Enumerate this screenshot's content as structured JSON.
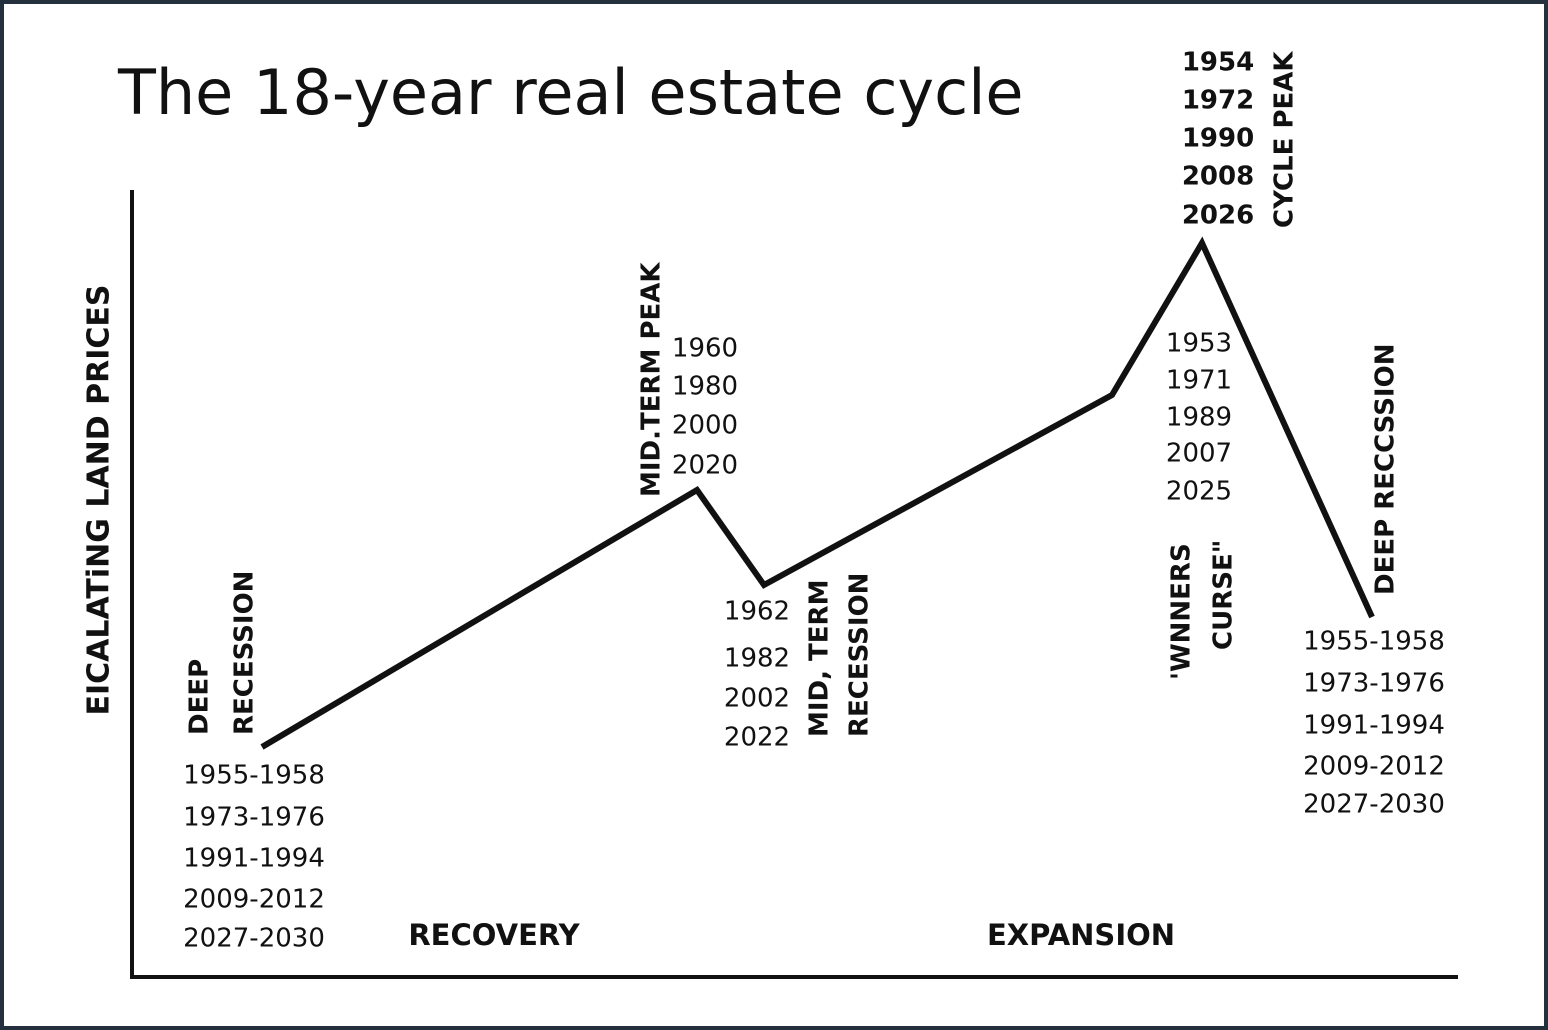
{
  "title": "The 18-year real estate cycle",
  "y_axis_label": "EICALATiNG LAND PRICES",
  "phases": [
    "RECOVERY",
    "EXPANSION"
  ],
  "stages": [
    {
      "label_lines": [
        "DEEP",
        "RECESSION"
      ],
      "years": [
        "1955-1958",
        "1973-1976",
        "1991-1994",
        "2009-2012",
        "2027-2030"
      ]
    },
    {
      "label_lines": [
        "MID.TERM PEAK"
      ],
      "years": [
        "1960",
        "1980",
        "2000",
        "2020"
      ]
    },
    {
      "label_lines": [
        "MID, TERM",
        "RECESSION"
      ],
      "years": [
        "1962",
        "1982",
        "2002",
        "2022"
      ]
    },
    {
      "label_lines": [
        "'WNNERS",
        "CURSE\""
      ],
      "years": [
        "1953",
        "1971",
        "1989",
        "2007",
        "2025"
      ]
    },
    {
      "label_lines": [
        "CYCLE PEAK"
      ],
      "years": [
        "1954",
        "1972",
        "1990",
        "2008",
        "2026"
      ]
    },
    {
      "label_lines": [
        "DEEP RECCSSION"
      ],
      "years": [
        "1955-1958",
        "1973-1976",
        "1991-1994",
        "2009-2012",
        "2027-2030"
      ]
    }
  ]
}
